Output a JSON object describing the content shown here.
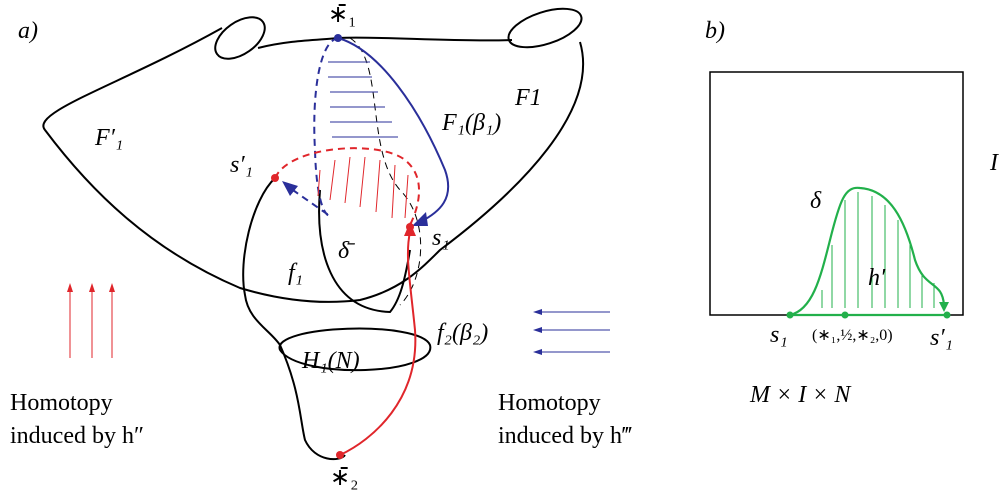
{
  "panel_a": {
    "label": "a)",
    "star_top": "∗̄₁",
    "f1_prime": "F′₁",
    "f1_beta": "F₁(β₁)",
    "f1": "F1",
    "s1_prime": "s′₁",
    "s1": "s₁",
    "delta_bar": "δ̄",
    "f_1": "f₁",
    "f2_beta": "f₂(β₂)",
    "h1n": "H₁(N)",
    "star_bottom": "∗̄₂",
    "left_caption": [
      "Homotopy",
      "induced by h″"
    ],
    "right_caption": [
      "Homotopy",
      "induced by h‴"
    ]
  },
  "panel_b": {
    "label": "b)",
    "interval": "I",
    "delta": "δ",
    "h_prime": "h′",
    "s1": "s₁",
    "midpoint": "(∗₁,½,∗₂,0)",
    "s1_prime": "s′₁",
    "caption": "M × I × N"
  }
}
